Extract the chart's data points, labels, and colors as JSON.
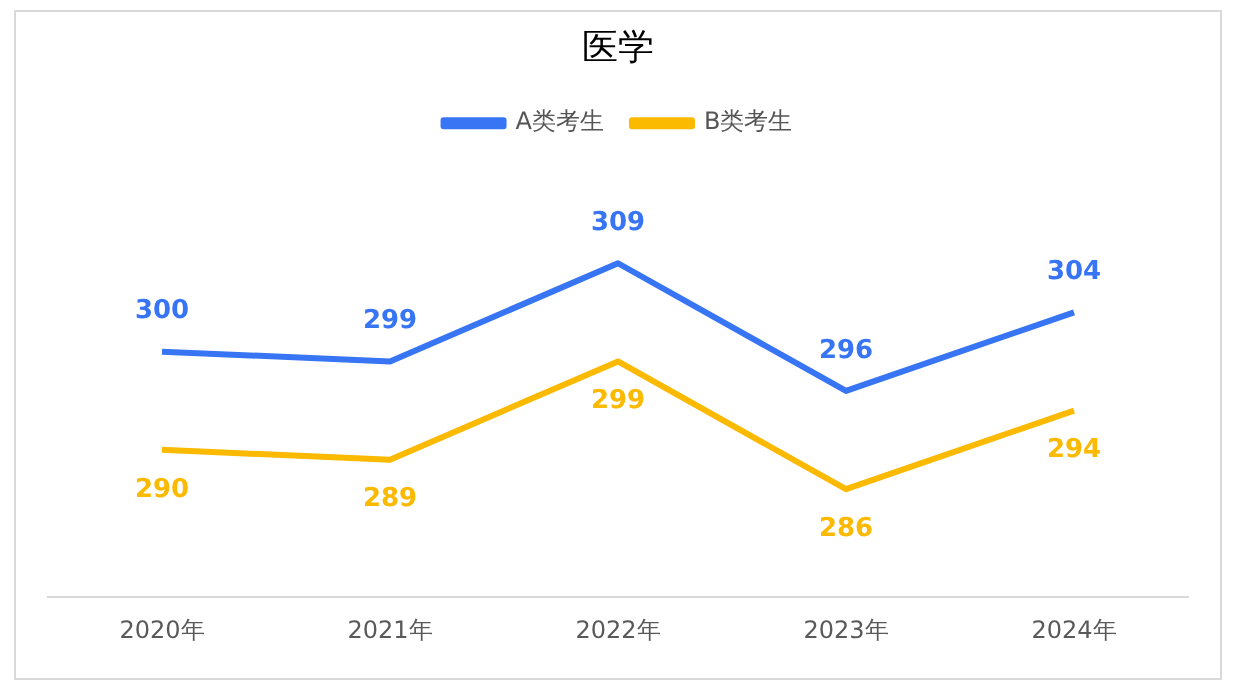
{
  "chart_data": {
    "type": "line",
    "title": "医学",
    "categories": [
      "2020年",
      "2021年",
      "2022年",
      "2023年",
      "2024年"
    ],
    "series": [
      {
        "name": "A类考生",
        "color": "#3775f5",
        "values": [
          300,
          299,
          309,
          296,
          304
        ]
      },
      {
        "name": "B类考生",
        "color": "#fbb900",
        "values": [
          290,
          289,
          299,
          286,
          294
        ]
      }
    ],
    "tick_labels": "x",
    "data_labels": true,
    "legend": "top",
    "grid": false,
    "marker": "none"
  }
}
